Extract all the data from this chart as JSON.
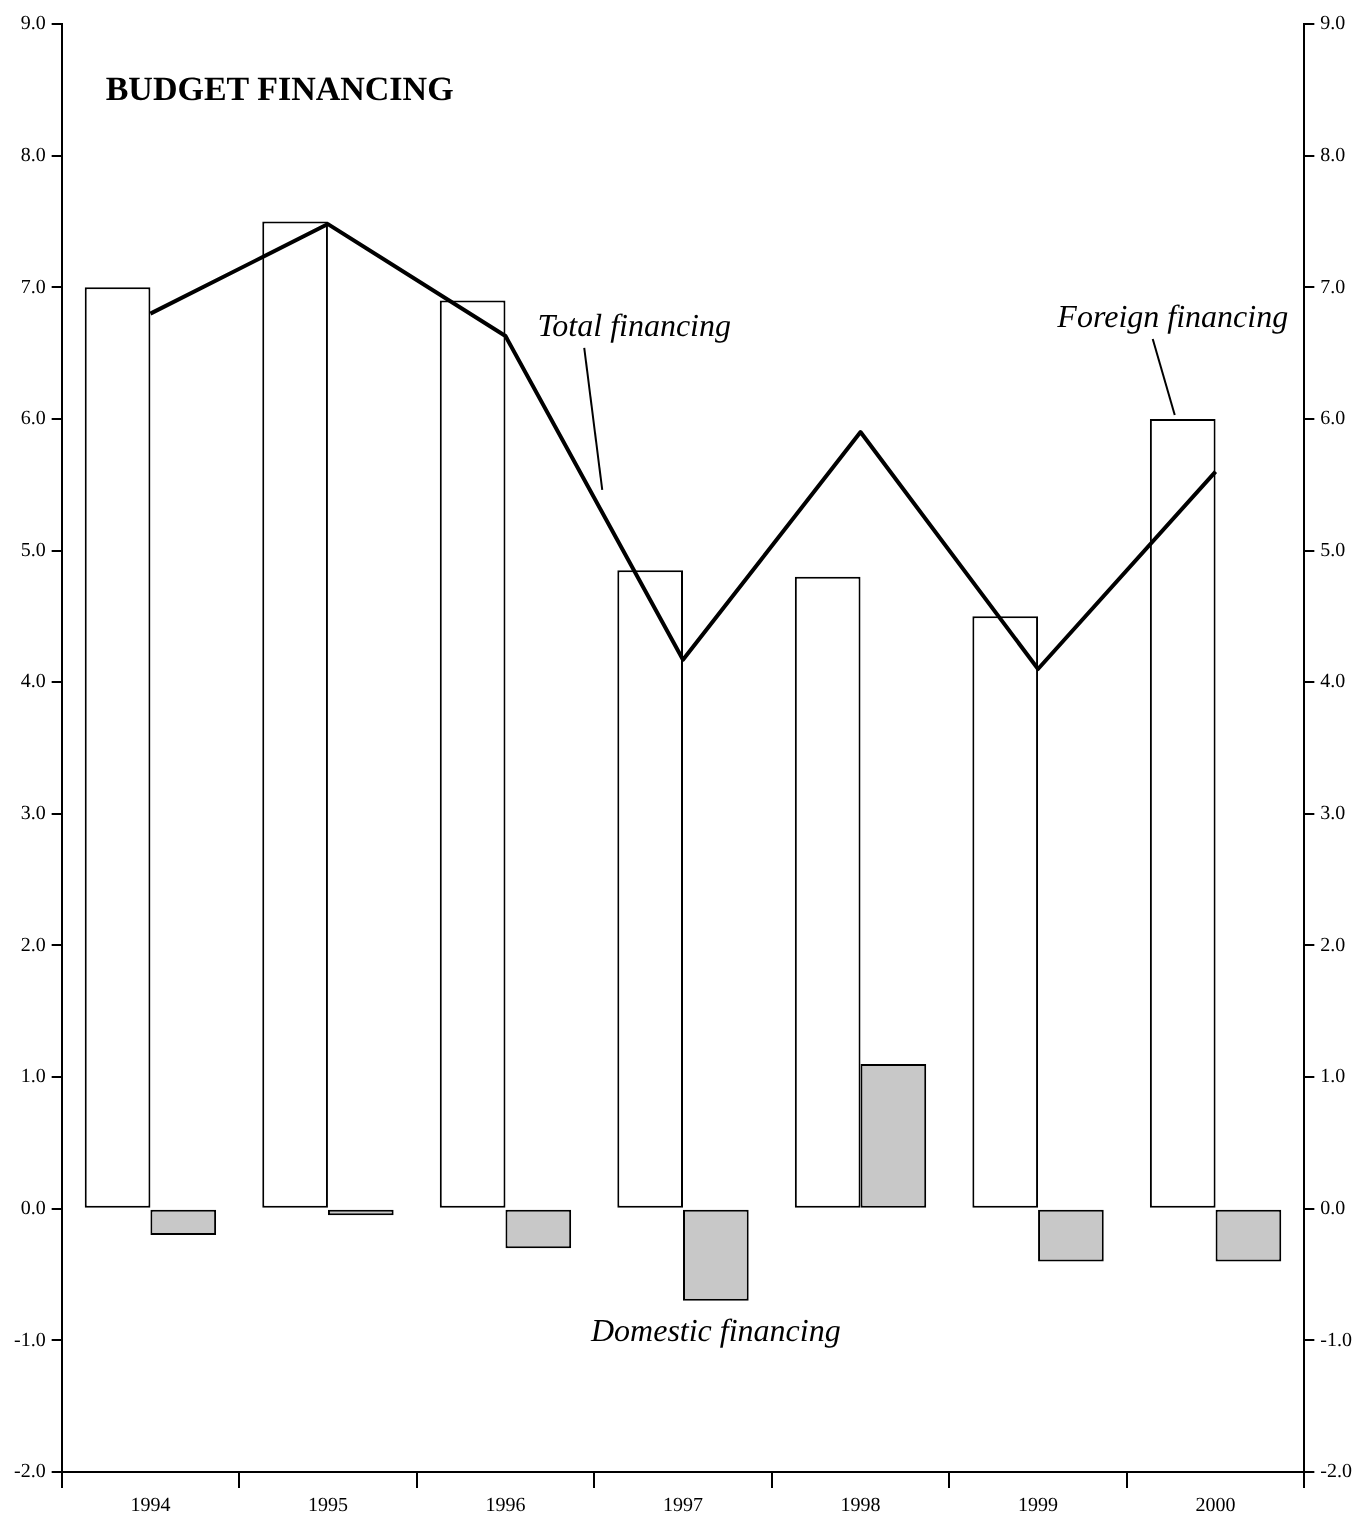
{
  "chart_data": {
    "type": "bar",
    "title": "BUDGET FINANCING",
    "categories": [
      "1994",
      "1995",
      "1996",
      "1997",
      "1998",
      "1999",
      "2000"
    ],
    "series": [
      {
        "name": "Foreign financing",
        "color": "#ffffff",
        "values": [
          7.0,
          7.5,
          6.9,
          4.85,
          4.8,
          4.5,
          6.0
        ]
      },
      {
        "name": "Domestic financing",
        "color": "#c8c8c8",
        "values": [
          -0.2,
          -0.05,
          -0.3,
          -0.7,
          1.1,
          -0.4,
          -0.4
        ]
      },
      {
        "name": "Total financing",
        "type": "line",
        "color": "#000000",
        "values": [
          6.8,
          7.48,
          6.63,
          4.17,
          5.9,
          4.1,
          5.6
        ]
      }
    ],
    "ylim": [
      -2,
      9
    ],
    "yticks": [
      {
        "value": -2,
        "label": "-2.0"
      },
      {
        "value": -1,
        "label": "-1.0"
      },
      {
        "value": 0,
        "label": "0.0"
      },
      {
        "value": 1,
        "label": "1.0"
      },
      {
        "value": 2,
        "label": "2.0"
      },
      {
        "value": 3,
        "label": "3.0"
      },
      {
        "value": 4,
        "label": "4.0"
      },
      {
        "value": 5,
        "label": "5.0"
      },
      {
        "value": 6,
        "label": "6.0"
      },
      {
        "value": 7,
        "label": "7.0"
      },
      {
        "value": 8,
        "label": "8.0"
      },
      {
        "value": 9,
        "label": "9.0"
      }
    ],
    "y2lim": [
      -2,
      9
    ],
    "y2ticks": [
      {
        "value": -2,
        "label": "-2.0"
      },
      {
        "value": -1,
        "label": "-1.0"
      },
      {
        "value": 0,
        "label": "0.0"
      },
      {
        "value": 1,
        "label": "1.0"
      },
      {
        "value": 2,
        "label": "2.0"
      },
      {
        "value": 3,
        "label": "3.0"
      },
      {
        "value": 4,
        "label": "4.0"
      },
      {
        "value": 5,
        "label": "5.0"
      },
      {
        "value": 6,
        "label": "6.0"
      },
      {
        "value": 7,
        "label": "7.0"
      },
      {
        "value": 8,
        "label": "8.0"
      },
      {
        "value": 9,
        "label": "9.0"
      }
    ],
    "grid": false,
    "legend": false,
    "marker": "none",
    "line_style": "solid"
  }
}
